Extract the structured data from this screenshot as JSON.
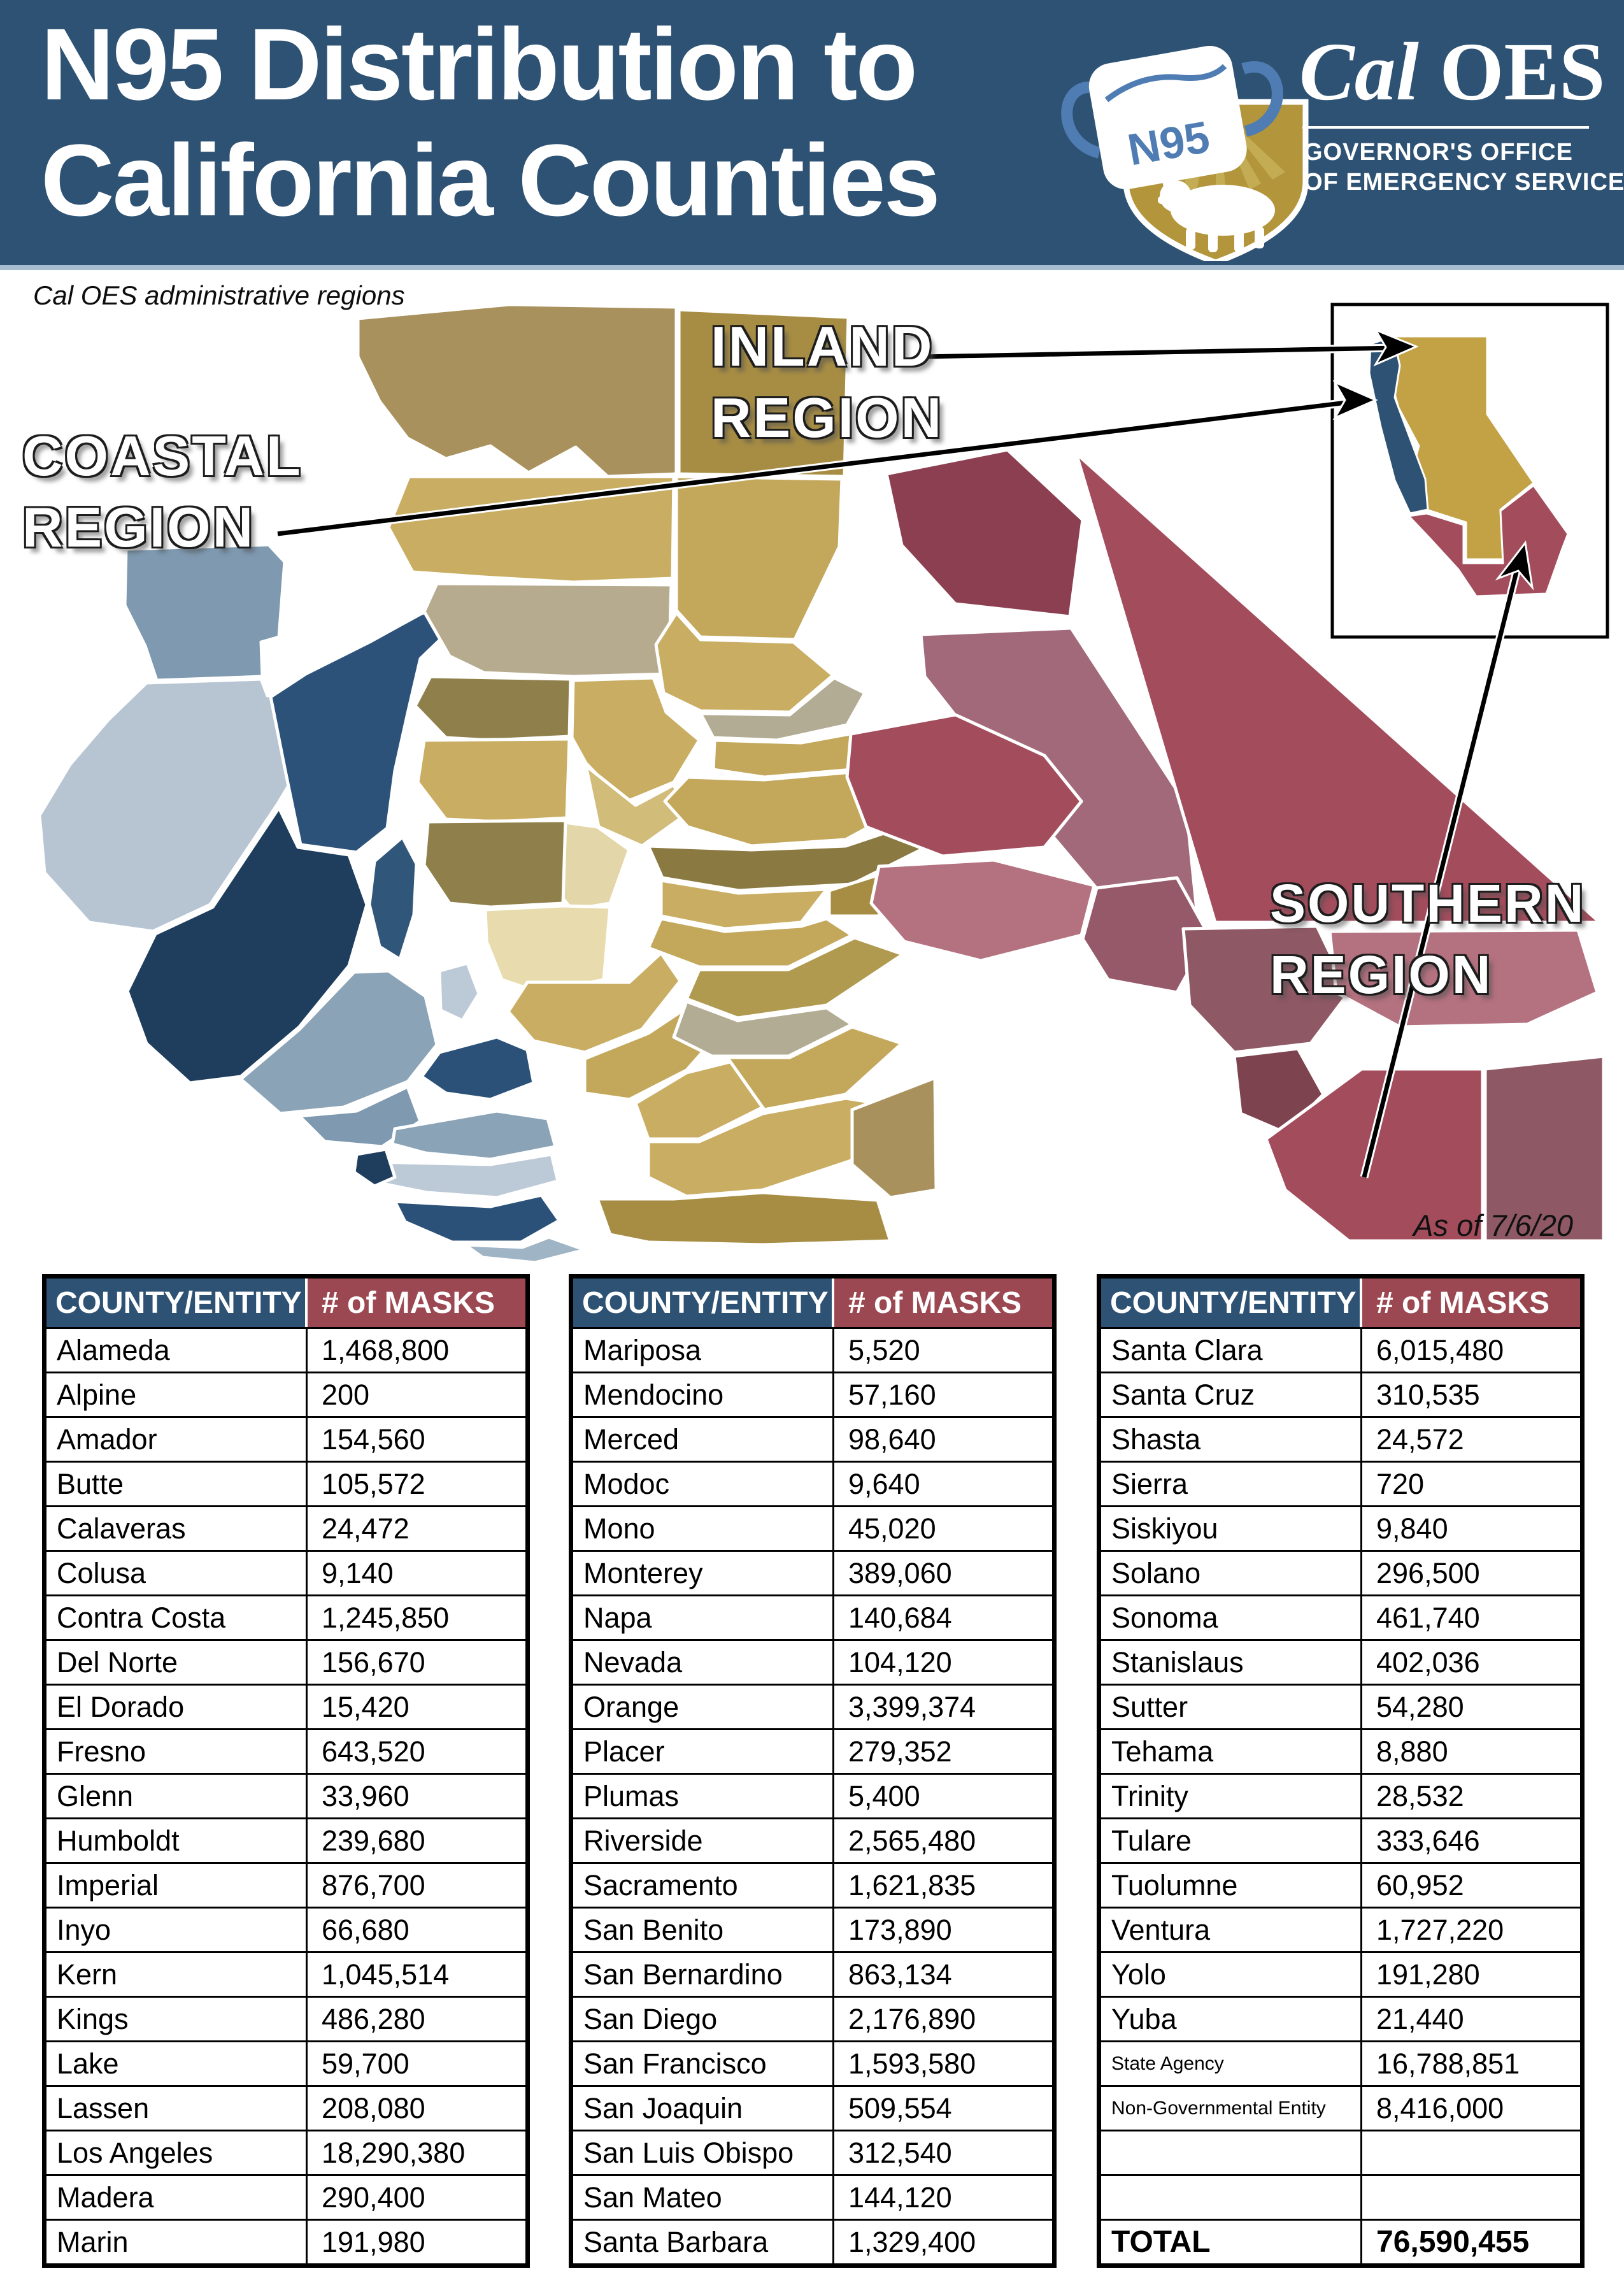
{
  "colors": {
    "header_blue": "#2E5273",
    "table_header_red": "#9C4852",
    "coastal_blue": "#2D527A",
    "inland_gold": "#C9AD62",
    "southern_red": "#A34C5C",
    "logo_gold": "#B3953B",
    "mask_strap_blue": "#4F7DB3"
  },
  "header": {
    "title_line1": "N95 Distribution to",
    "title_line2": "California Counties",
    "logo": {
      "mask_text": "N95",
      "brand_cal": "Cal",
      "brand_oes": "OES",
      "subtitle_line1": "GOVERNOR'S OFFICE",
      "subtitle_line2": "OF EMERGENCY SERVICES"
    }
  },
  "map": {
    "caption": "Cal OES administrative regions",
    "as_of": "As of  7/6/20",
    "regions": [
      {
        "line1": "COASTAL",
        "line2": "REGION",
        "color": "#2D527A"
      },
      {
        "line1": "INLAND",
        "line2": "REGION",
        "color": "#C9AD62"
      },
      {
        "line1": "SOUTHERN",
        "line2": "REGION",
        "color": "#A34C5C"
      }
    ]
  },
  "tables": [
    {
      "headers": [
        "COUNTY/ENTITY",
        "# of MASKS"
      ],
      "rows": [
        {
          "county": "Alameda",
          "masks": "1,468,800"
        },
        {
          "county": "Alpine",
          "masks": "200"
        },
        {
          "county": "Amador",
          "masks": "154,560"
        },
        {
          "county": "Butte",
          "masks": "105,572"
        },
        {
          "county": "Calaveras",
          "masks": "24,472"
        },
        {
          "county": "Colusa",
          "masks": "9,140"
        },
        {
          "county": "Contra Costa",
          "masks": "1,245,850"
        },
        {
          "county": "Del Norte",
          "masks": "156,670"
        },
        {
          "county": "El Dorado",
          "masks": "15,420"
        },
        {
          "county": "Fresno",
          "masks": "643,520"
        },
        {
          "county": "Glenn",
          "masks": "33,960"
        },
        {
          "county": "Humboldt",
          "masks": "239,680"
        },
        {
          "county": "Imperial",
          "masks": "876,700"
        },
        {
          "county": "Inyo",
          "masks": "66,680"
        },
        {
          "county": "Kern",
          "masks": "1,045,514"
        },
        {
          "county": "Kings",
          "masks": "486,280"
        },
        {
          "county": "Lake",
          "masks": "59,700"
        },
        {
          "county": "Lassen",
          "masks": "208,080"
        },
        {
          "county": "Los Angeles",
          "masks": "18,290,380"
        },
        {
          "county": "Madera",
          "masks": "290,400"
        },
        {
          "county": "Marin",
          "masks": "191,980"
        }
      ]
    },
    {
      "headers": [
        "COUNTY/ENTITY",
        "# of MASKS"
      ],
      "rows": [
        {
          "county": "Mariposa",
          "masks": "5,520"
        },
        {
          "county": "Mendocino",
          "masks": "57,160"
        },
        {
          "county": "Merced",
          "masks": "98,640"
        },
        {
          "county": "Modoc",
          "masks": "9,640"
        },
        {
          "county": "Mono",
          "masks": "45,020"
        },
        {
          "county": "Monterey",
          "masks": "389,060"
        },
        {
          "county": "Napa",
          "masks": "140,684"
        },
        {
          "county": "Nevada",
          "masks": "104,120"
        },
        {
          "county": "Orange",
          "masks": "3,399,374"
        },
        {
          "county": "Placer",
          "masks": "279,352"
        },
        {
          "county": "Plumas",
          "masks": "5,400"
        },
        {
          "county": "Riverside",
          "masks": "2,565,480"
        },
        {
          "county": "Sacramento",
          "masks": "1,621,835"
        },
        {
          "county": "San Benito",
          "masks": "173,890"
        },
        {
          "county": "San Bernardino",
          "masks": "863,134"
        },
        {
          "county": "San Diego",
          "masks": "2,176,890"
        },
        {
          "county": "San Francisco",
          "masks": "1,593,580"
        },
        {
          "county": "San Joaquin",
          "masks": "509,554"
        },
        {
          "county": "San Luis Obispo",
          "masks": "312,540"
        },
        {
          "county": "San Mateo",
          "masks": "144,120"
        },
        {
          "county": "Santa Barbara",
          "masks": "1,329,400"
        }
      ]
    },
    {
      "headers": [
        "COUNTY/ENTITY",
        "# of MASKS"
      ],
      "rows": [
        {
          "county": "Santa Clara",
          "masks": "6,015,480"
        },
        {
          "county": "Santa Cruz",
          "masks": "310,535"
        },
        {
          "county": "Shasta",
          "masks": "24,572"
        },
        {
          "county": "Sierra",
          "masks": "720"
        },
        {
          "county": "Siskiyou",
          "masks": "9,840"
        },
        {
          "county": "Solano",
          "masks": "296,500"
        },
        {
          "county": "Sonoma",
          "masks": "461,740"
        },
        {
          "county": "Stanislaus",
          "masks": "402,036"
        },
        {
          "county": "Sutter",
          "masks": "54,280"
        },
        {
          "county": "Tehama",
          "masks": "8,880"
        },
        {
          "county": "Trinity",
          "masks": "28,532"
        },
        {
          "county": "Tulare",
          "masks": "333,646"
        },
        {
          "county": "Tuolumne",
          "masks": "60,952"
        },
        {
          "county": "Ventura",
          "masks": "1,727,220"
        },
        {
          "county": "Yolo",
          "masks": "191,280"
        },
        {
          "county": "Yuba",
          "masks": "21,440"
        },
        {
          "county": "State Agency",
          "masks": "16,788,851",
          "small": true
        },
        {
          "county": "Non-Governmental Entity",
          "masks": "8,416,000",
          "small": true
        },
        {
          "county": "",
          "masks": "",
          "empty": true
        },
        {
          "county": "",
          "masks": "",
          "empty": true
        },
        {
          "county": "TOTAL",
          "masks": "76,590,455",
          "total": true
        }
      ]
    }
  ]
}
